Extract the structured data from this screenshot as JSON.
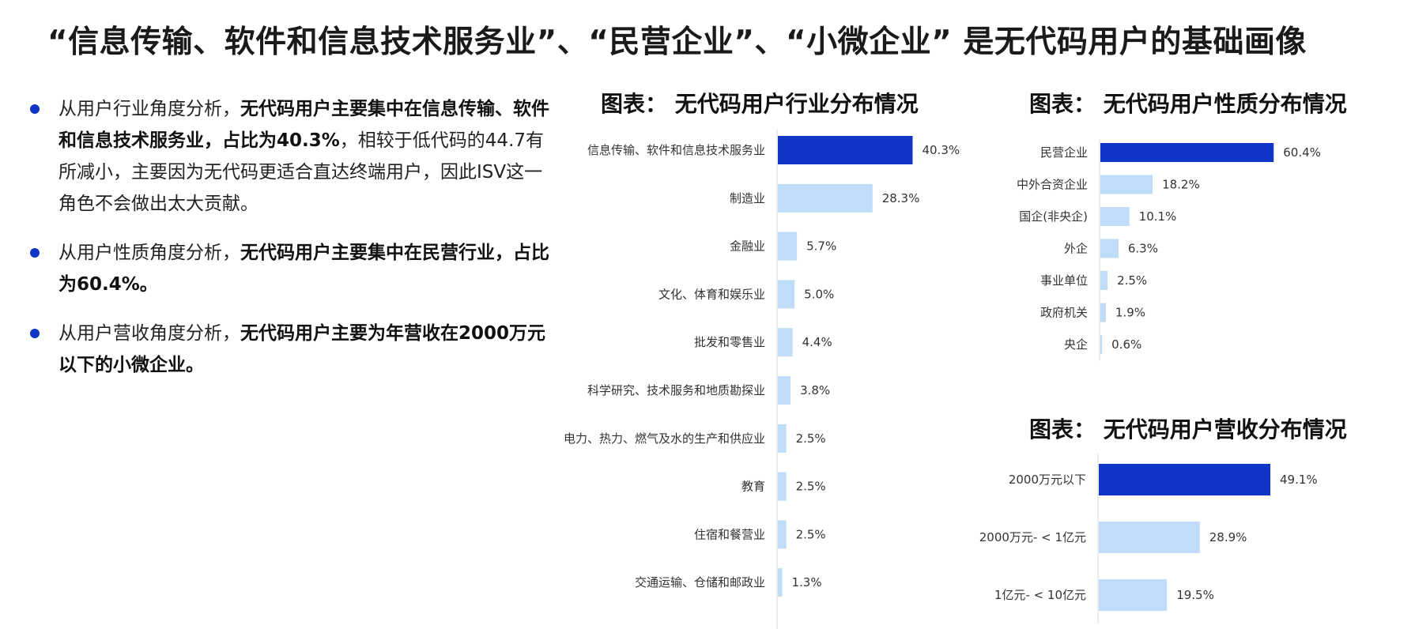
{
  "title": "“信息传输、软件和信息技术服务业”、“民营企业”、“小微企业” 是无代码用户的基础画像",
  "bullets": [
    {
      "parts": [
        {
          "text": "从用户行业角度分析，",
          "bold": false
        },
        {
          "text": "无代码用户主要集中在信息传输、软件和信息技术服务业，占比为40.3%",
          "bold": true
        },
        {
          "text": "，相较于低代码的44.7有所减小，主要因为无代码更适合直达终端用户，因此ISV这一角色不会做出太大贡献。",
          "bold": false
        }
      ]
    },
    {
      "parts": [
        {
          "text": "从用户性质角度分析，",
          "bold": false
        },
        {
          "text": "无代码用户主要集中在民营行业，占比为60.4%。",
          "bold": true
        }
      ]
    },
    {
      "parts": [
        {
          "text": "从用户营收角度分析，",
          "bold": false
        },
        {
          "text": "无代码用户主要为年营收在2000万元以下的小微企业。",
          "bold": true
        }
      ]
    }
  ],
  "colors": {
    "highlight": "#1136c6",
    "bar": "#bfdcf8",
    "bullet": "#1136c6"
  },
  "chart_data": [
    {
      "type": "bar",
      "orientation": "horizontal",
      "title": "图表： 无代码用户行业分布情况",
      "categories": [
        "信息传输、软件和信息技术服务业",
        "制造业",
        "金融业",
        "文化、体育和娱乐业",
        "批发和零售业",
        "科学研究、技术服务和地质勘探业",
        "电力、热力、燃气及水的生产和供应业",
        "教育",
        "住宿和餐营业",
        "交通运输、仓储和邮政业"
      ],
      "values": [
        40.3,
        28.3,
        5.7,
        5.0,
        4.4,
        3.8,
        2.5,
        2.5,
        2.5,
        1.3
      ],
      "value_labels": [
        "40.3%",
        "28.3%",
        "5.7%",
        "5.0%",
        "4.4%",
        "3.8%",
        "2.5%",
        "2.5%",
        "2.5%",
        "1.3%"
      ],
      "highlight_index": 0,
      "grid": false
    },
    {
      "type": "bar",
      "orientation": "horizontal",
      "title": "图表： 无代码用户性质分布情况",
      "categories": [
        "民营企业",
        "中外合资企业",
        "国企(非央企)",
        "外企",
        "事业单位",
        "政府机关",
        "央企"
      ],
      "values": [
        60.4,
        18.2,
        10.1,
        6.3,
        2.5,
        1.9,
        0.6
      ],
      "value_labels": [
        "60.4%",
        "18.2%",
        "10.1%",
        "6.3%",
        "2.5%",
        "1.9%",
        "0.6%"
      ],
      "highlight_index": 0,
      "grid": false
    },
    {
      "type": "bar",
      "orientation": "horizontal",
      "title": "图表： 无代码用户营收分布情况",
      "categories": [
        "2000万元以下",
        "2000万元- < 1亿元",
        "1亿元- < 10亿元"
      ],
      "values": [
        49.1,
        28.9,
        19.5
      ],
      "value_labels": [
        "49.1%",
        "28.9%",
        "19.5%"
      ],
      "highlight_index": 0,
      "grid": false
    }
  ]
}
